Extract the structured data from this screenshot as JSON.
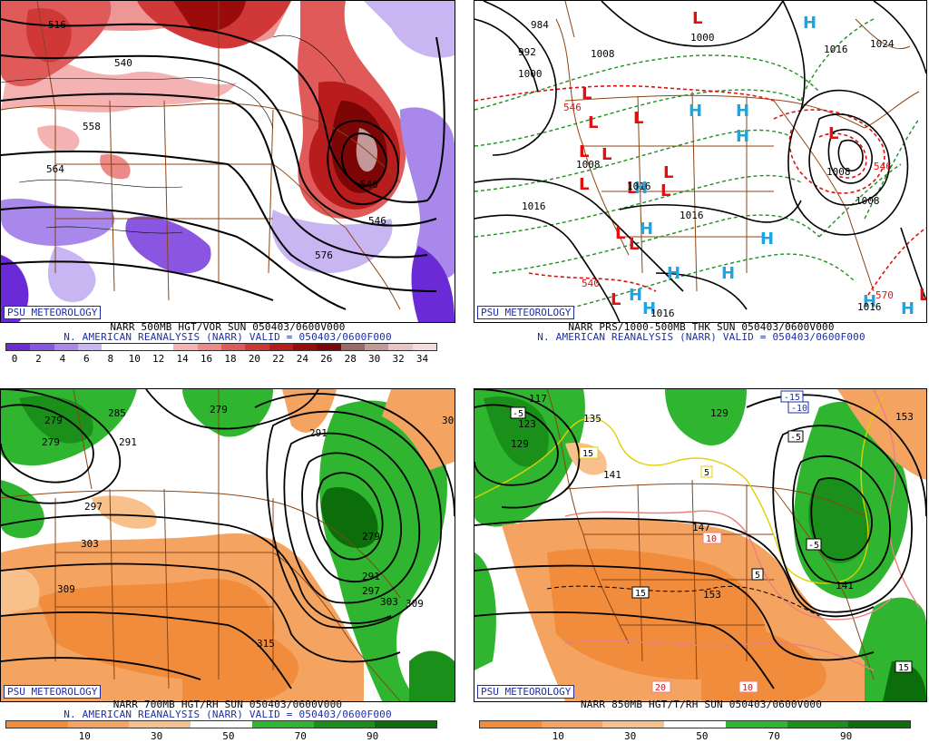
{
  "panels": [
    {
      "badge": "PSU METEOROLOGY",
      "caption_line1": "NARR 500MB HGT/VOR SUN 050403/0600V000",
      "caption_line2": "N. AMERICAN REANALYSIS (NARR) VALID = 050403/0600F000",
      "colorbar_labels": [
        "0",
        "2",
        "4",
        "6",
        "8",
        "10",
        "12",
        "14",
        "16",
        "18",
        "20",
        "22",
        "24",
        "26",
        "28",
        "30",
        "32",
        "34"
      ],
      "colorbar_colors": [
        "#6a2bd6",
        "#8a55e0",
        "#a888ea",
        "#c8b6f2",
        "#ffffff",
        "#ffffff",
        "#ffffff",
        "#f4b2b2",
        "#ec8a8a",
        "#e05a5a",
        "#d03838",
        "#b81c1c",
        "#9a0c0c",
        "#7c0606",
        "#9a6a6a",
        "#c49898",
        "#e8c4c4",
        "#f6dcdc"
      ],
      "contour_labels": [
        "516",
        "540",
        "564",
        "540",
        "576",
        "546",
        "558"
      ]
    },
    {
      "badge": "PSU METEOROLOGY",
      "caption_line1": "NARR PRS/1000-500MB THK SUN 050403/0600V000",
      "caption_line2": "N. AMERICAN REANALYSIS (NARR) VALID = 050403/0600F000",
      "contour_labels": [
        "984",
        "992",
        "1000",
        "1008",
        "1000",
        "1016",
        "1024",
        "1008",
        "1016",
        "1016",
        "1016",
        "1008",
        "1016",
        "1008",
        "1016"
      ],
      "thickness_labels": [
        "546",
        "540",
        "570",
        "546"
      ],
      "high_letter": "H",
      "low_letter": "L"
    },
    {
      "badge": "PSU METEOROLOGY",
      "caption_line1": "NARR 700MB HGT/RH SUN 050403/0600V000",
      "caption_line2": "N. AMERICAN REANALYSIS (NARR) VALID = 050403/0600F000",
      "colorbar_labels": [
        "10",
        "30",
        "50",
        "70",
        "90"
      ],
      "colorbar_colors": [
        "#f08c3c",
        "#f4a460",
        "#f8c08a",
        "#ffffff",
        "#2fb52f",
        "#1a901a",
        "#0b6e0b"
      ],
      "contour_labels": [
        "279",
        "285",
        "279",
        "279",
        "291",
        "297",
        "303",
        "309",
        "315",
        "279",
        "291",
        "297",
        "303",
        "309",
        "30",
        "291"
      ]
    },
    {
      "badge": "PSU METEOROLOGY",
      "caption_line1": "NARR 850MB HGT/T/RH SUN 050403/0600V000",
      "colorbar_labels": [
        "10",
        "30",
        "50",
        "70",
        "90"
      ],
      "colorbar_colors": [
        "#f08c3c",
        "#f4a460",
        "#f8c08a",
        "#ffffff",
        "#2fb52f",
        "#1a901a",
        "#0b6e0b"
      ],
      "contour_labels": [
        "117",
        "123",
        "129",
        "135",
        "141",
        "147",
        "153",
        "129",
        "141",
        "153",
        "-15",
        "-10",
        "-5",
        "-5",
        "-5",
        "5",
        "5",
        "10",
        "15",
        "15",
        "20",
        "10",
        "15"
      ]
    }
  ],
  "colors": {
    "border": "#000000",
    "badge_text": "#1f2fa0",
    "caption_blue": "#1f2fa0",
    "map_lines": "#8b4513",
    "contour": "#000000",
    "thickness_green": "#1f8f1f",
    "thickness_red": "#e01010",
    "high_blue": "#1aa6e6",
    "low_red": "#e01010"
  }
}
